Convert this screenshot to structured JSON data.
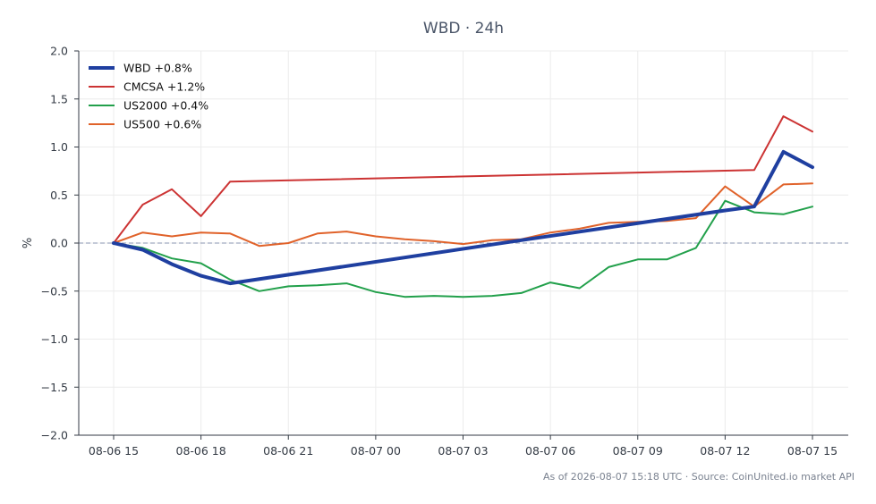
{
  "chart_data": {
    "type": "line",
    "title": "WBD · 24h",
    "xlabel": "",
    "ylabel": "%",
    "ylim": [
      -2.0,
      2.0
    ],
    "yticks": [
      2.0,
      1.5,
      1.0,
      0.5,
      0.0,
      -0.5,
      -1.0,
      -1.5,
      -2.0
    ],
    "ytick_labels": [
      "2.0",
      "1.5",
      "1.0",
      "0.5",
      "0.0",
      "−0.5",
      "−1.0",
      "−1.5",
      "−2.0"
    ],
    "x_range": [
      "08-06 15:00",
      "08-07 15:00"
    ],
    "xticks": [
      "08-06 15",
      "08-06 18",
      "08-06 21",
      "08-07 00",
      "08-07 03",
      "08-07 06",
      "08-07 09",
      "08-07 12",
      "08-07 15"
    ],
    "grid": true,
    "zero_line": true,
    "legend_position": "top-left",
    "x": [
      "08-06 15:00",
      "08-06 16:00",
      "08-06 17:00",
      "08-06 18:00",
      "08-06 19:00",
      "08-06 20:00",
      "08-06 21:00",
      "08-06 22:00",
      "08-06 23:00",
      "08-07 00:00",
      "08-07 01:00",
      "08-07 02:00",
      "08-07 03:00",
      "08-07 04:00",
      "08-07 05:00",
      "08-07 06:00",
      "08-07 07:00",
      "08-07 08:00",
      "08-07 09:00",
      "08-07 10:00",
      "08-07 11:00",
      "08-07 12:00",
      "08-07 13:00",
      "08-07 14:00",
      "08-07 15:00"
    ],
    "series": [
      {
        "name": "WBD +0.8%",
        "color": "#1f3fa0",
        "width": 4,
        "points": [
          [
            "08-06 15:00",
            0.0
          ],
          [
            "08-06 16:00",
            -0.07
          ],
          [
            "08-06 17:00",
            -0.22
          ],
          [
            "08-06 18:00",
            -0.34
          ],
          [
            "08-06 19:00",
            -0.42
          ],
          [
            "08-07 05:00",
            0.03
          ],
          [
            "08-07 12:00",
            0.34
          ],
          [
            "08-07 13:00",
            0.38
          ],
          [
            "08-07 14:00",
            0.95
          ],
          [
            "08-07 15:00",
            0.79
          ]
        ]
      },
      {
        "name": "CMCSA +1.2%",
        "color": "#cc3333",
        "width": 2,
        "points": [
          [
            "08-06 15:00",
            0.0
          ],
          [
            "08-06 16:00",
            0.4
          ],
          [
            "08-06 17:00",
            0.56
          ],
          [
            "08-06 18:00",
            0.28
          ],
          [
            "08-06 19:00",
            0.64
          ],
          [
            "08-07 13:00",
            0.76
          ],
          [
            "08-07 14:00",
            1.32
          ],
          [
            "08-07 15:00",
            1.16
          ]
        ]
      },
      {
        "name": "US2000 +0.4%",
        "color": "#22a04b",
        "width": 2,
        "values": [
          0.0,
          -0.05,
          -0.16,
          -0.21,
          -0.38,
          -0.5,
          -0.45,
          -0.44,
          -0.42,
          -0.51,
          -0.56,
          -0.55,
          -0.56,
          -0.55,
          -0.52,
          -0.41,
          -0.47,
          -0.25,
          -0.17,
          -0.17,
          -0.05,
          0.44,
          0.32,
          0.3,
          0.38
        ]
      },
      {
        "name": "US500 +0.6%",
        "color": "#e0622a",
        "width": 2,
        "values": [
          0.0,
          0.11,
          0.07,
          0.11,
          0.1,
          -0.03,
          0.0,
          0.1,
          0.12,
          0.07,
          0.04,
          0.02,
          -0.01,
          0.03,
          0.04,
          0.11,
          0.15,
          0.21,
          0.22,
          0.23,
          0.26,
          0.59,
          0.38,
          0.61,
          0.62
        ]
      }
    ]
  },
  "footer": "As of 2026-08-07 15:18 UTC · Source: CoinUnited.io market API"
}
